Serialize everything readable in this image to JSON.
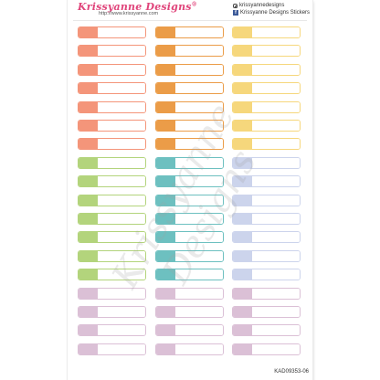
{
  "header": {
    "brand": "Krissyanne Designs",
    "brand_mark": "®",
    "url": "http://www.krissyanne.com",
    "instagram": "krissyannedesigns",
    "instagram_icon": "instagram-icon",
    "facebook": "Krissyanne Designs Stickers",
    "facebook_icon": "facebook-icon"
  },
  "watermark": "Krissyanne Designs",
  "product_code": "KAD09353-06",
  "colors": {
    "coral": {
      "tab": "#f4957a",
      "border": "#f4957a"
    },
    "orange": {
      "tab": "#eb9c48",
      "border": "#eb9c48"
    },
    "yellow": {
      "tab": "#f6d77c",
      "border": "#f6d77c"
    },
    "green": {
      "tab": "#b3d47c",
      "border": "#b3d47c"
    },
    "teal": {
      "tab": "#6dc0c0",
      "border": "#6dc0c0"
    },
    "periwinkle": {
      "tab": "#ccd4ec",
      "border": "#ccd4ec"
    },
    "mauve": {
      "tab": "#dbc0d6",
      "border": "#dbc0d6"
    }
  },
  "layout_rows": [
    [
      "coral",
      "orange",
      "yellow"
    ],
    [
      "coral",
      "orange",
      "yellow"
    ],
    [
      "coral",
      "orange",
      "yellow"
    ],
    [
      "coral",
      "orange",
      "yellow"
    ],
    [
      "coral",
      "orange",
      "yellow"
    ],
    [
      "coral",
      "orange",
      "yellow"
    ],
    [
      "coral",
      "orange",
      "yellow"
    ],
    [
      "green",
      "teal",
      "periwinkle"
    ],
    [
      "green",
      "teal",
      "periwinkle"
    ],
    [
      "green",
      "teal",
      "periwinkle"
    ],
    [
      "green",
      "teal",
      "periwinkle"
    ],
    [
      "green",
      "teal",
      "periwinkle"
    ],
    [
      "green",
      "teal",
      "periwinkle"
    ],
    [
      "green",
      "teal",
      "periwinkle"
    ],
    [
      "mauve",
      "mauve",
      "mauve"
    ],
    [
      "mauve",
      "mauve",
      "mauve"
    ],
    [
      "mauve",
      "mauve",
      "mauve"
    ],
    [
      "mauve",
      "mauve",
      "mauve"
    ]
  ]
}
